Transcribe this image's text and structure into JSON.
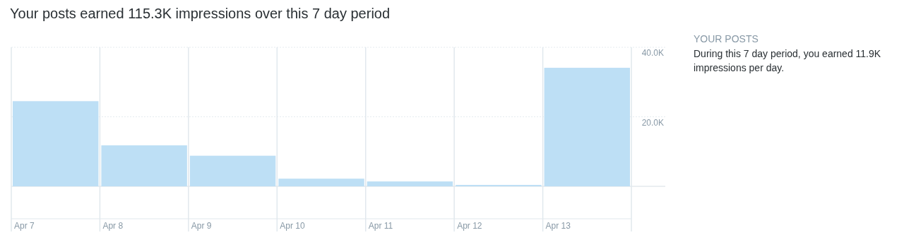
{
  "chart_data": {
    "type": "bar",
    "title": "Your posts earned 115.3K impressions over this 7 day period",
    "categories": [
      "Apr 7",
      "Apr 8",
      "Apr 9",
      "Apr 10",
      "Apr 11",
      "Apr 12",
      "Apr 13"
    ],
    "values": [
      24500,
      11800,
      8800,
      2200,
      1400,
      400,
      34100
    ],
    "color": "#bddff5",
    "ylim": [
      0,
      40000
    ],
    "yticks": [
      {
        "value": 0,
        "label": null
      },
      {
        "value": 20000,
        "label": "20.0K"
      },
      {
        "value": 40000,
        "label": "40.0K"
      }
    ],
    "grid": "y",
    "annotations": [
      "YOUR POSTS",
      "During this 7 day period, you earned 11.9K impressions per day."
    ]
  }
}
